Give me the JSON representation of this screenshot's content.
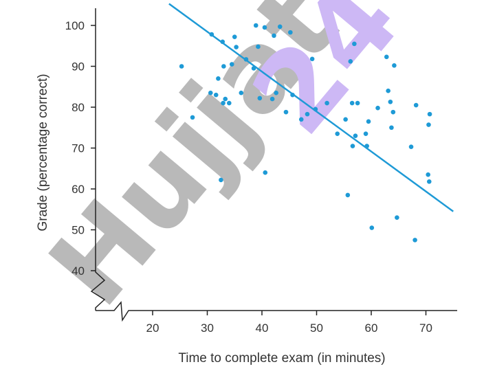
{
  "chart_data": {
    "type": "scatter",
    "xlabel": "Time to complete exam (in minutes)",
    "ylabel": "Grade (percentage correct)",
    "xlim": [
      20,
      75
    ],
    "ylim": [
      40,
      100
    ],
    "x_ticks": [
      20,
      30,
      40,
      50,
      60,
      70
    ],
    "y_ticks": [
      40,
      50,
      60,
      70,
      80,
      90,
      100
    ],
    "axis_breaks": true,
    "grid": false,
    "legend": "none",
    "series": [
      {
        "x": [
          25.3,
          27.3,
          30.6,
          30.8,
          31.6,
          32.0,
          32.5,
          32.8,
          32.9,
          33.0,
          33.3,
          34.0,
          34.5,
          35.0,
          35.3,
          36.2,
          37.1,
          38.5,
          38.9,
          39.3,
          39.6,
          40.5,
          40.6,
          41.9,
          42.2,
          42.6,
          43.3,
          44.4,
          45.2,
          45.6,
          47.2,
          48.3,
          49.2,
          49.8,
          51.9,
          53.8,
          55.3,
          55.7,
          56.2,
          56.5,
          56.6,
          56.9,
          57.1,
          57.5,
          59.0,
          59.2,
          59.5,
          60.1,
          61.2,
          62.8,
          63.1,
          63.5,
          63.7,
          64.0,
          64.2,
          64.7,
          67.3,
          68.0,
          68.2,
          70.4,
          70.5,
          70.6,
          70.7
        ],
        "y": [
          90,
          77.5,
          83.5,
          97.8,
          83.0,
          87.0,
          62.2,
          96.0,
          81.0,
          90.0,
          82.0,
          81.0,
          90.5,
          97.2,
          94.7,
          83.5,
          91.7,
          89.5,
          100.0,
          94.8,
          82.2,
          99.5,
          64.0,
          82.0,
          97.5,
          83.5,
          99.7,
          78.8,
          98.3,
          83.0,
          77.0,
          78.3,
          91.8,
          79.5,
          81.0,
          73.5,
          77.0,
          58.5,
          91.2,
          81.0,
          70.5,
          95.5,
          73.0,
          81.0,
          73.5,
          70.5,
          76.5,
          50.5,
          79.8,
          92.3,
          84.0,
          81.3,
          75.0,
          78.8,
          90.2,
          53.0,
          70.3,
          47.5,
          80.5,
          63.5,
          75.7,
          61.8,
          78.3
        ],
        "color": "#1e9ad6"
      }
    ],
    "trendline": {
      "x": [
        23.0,
        75.0
      ],
      "y": [
        105.3,
        54.5
      ],
      "color": "#1e9ad6"
    }
  },
  "watermark": {
    "text": "Hujjat",
    "number": "24",
    "text_color": "#b9b9b9",
    "number_color": "#cdb8f5"
  }
}
